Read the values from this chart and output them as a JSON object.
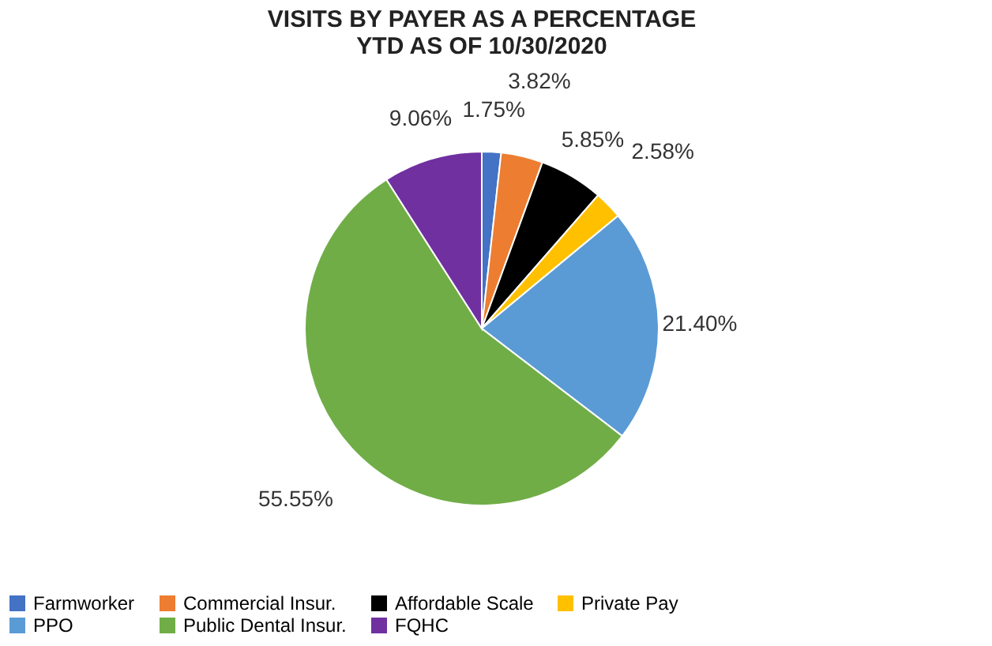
{
  "chart_data": {
    "type": "pie",
    "title": [
      "VISITS BY PAYER AS A PERCENTAGE",
      "YTD AS OF 10/30/2020"
    ],
    "categories": [
      "Farmworker",
      "Commercial Insur.",
      "Affordable Scale",
      "Private Pay",
      "PPO",
      "Public Dental Insur.",
      "FQHC"
    ],
    "values": [
      1.75,
      3.82,
      5.85,
      2.58,
      21.4,
      55.55,
      9.06
    ],
    "value_labels": [
      "1.75%",
      "3.82%",
      "5.85%",
      "2.58%",
      "21.40%",
      "55.55%",
      "9.06%"
    ],
    "colors": [
      "#4472c4",
      "#ed7d31",
      "#000000",
      "#ffc000",
      "#5b9bd5",
      "#70ad47",
      "#7030a0"
    ],
    "legend": "bottom"
  }
}
